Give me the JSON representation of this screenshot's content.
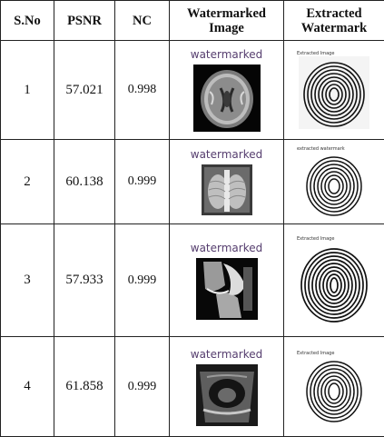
{
  "columns": [
    "S.No",
    "PSNR",
    "NC",
    "Watermarked Image",
    "Extracted Watermark"
  ],
  "rows": [
    {
      "sno": "1",
      "psnr": "57.021",
      "nc": "0.998",
      "wm_caption": "watermarked",
      "ex_caption": "Extracted Image",
      "image": "brain-mri"
    },
    {
      "sno": "2",
      "psnr": "60.138",
      "nc": "0.999",
      "wm_caption": "watermarked",
      "ex_caption": "extracted watermark",
      "image": "chest-xray"
    },
    {
      "sno": "3",
      "psnr": "57.933",
      "nc": "0.999",
      "wm_caption": "watermarked",
      "ex_caption": "Extracted Image",
      "image": "knee-mri"
    },
    {
      "sno": "4",
      "psnr": "61.858",
      "nc": "0.999",
      "wm_caption": "watermarked",
      "ex_caption": "Extracted Image",
      "image": "ultrasound"
    }
  ],
  "colors": {
    "border": "#222222",
    "caption": "#553d6e"
  }
}
